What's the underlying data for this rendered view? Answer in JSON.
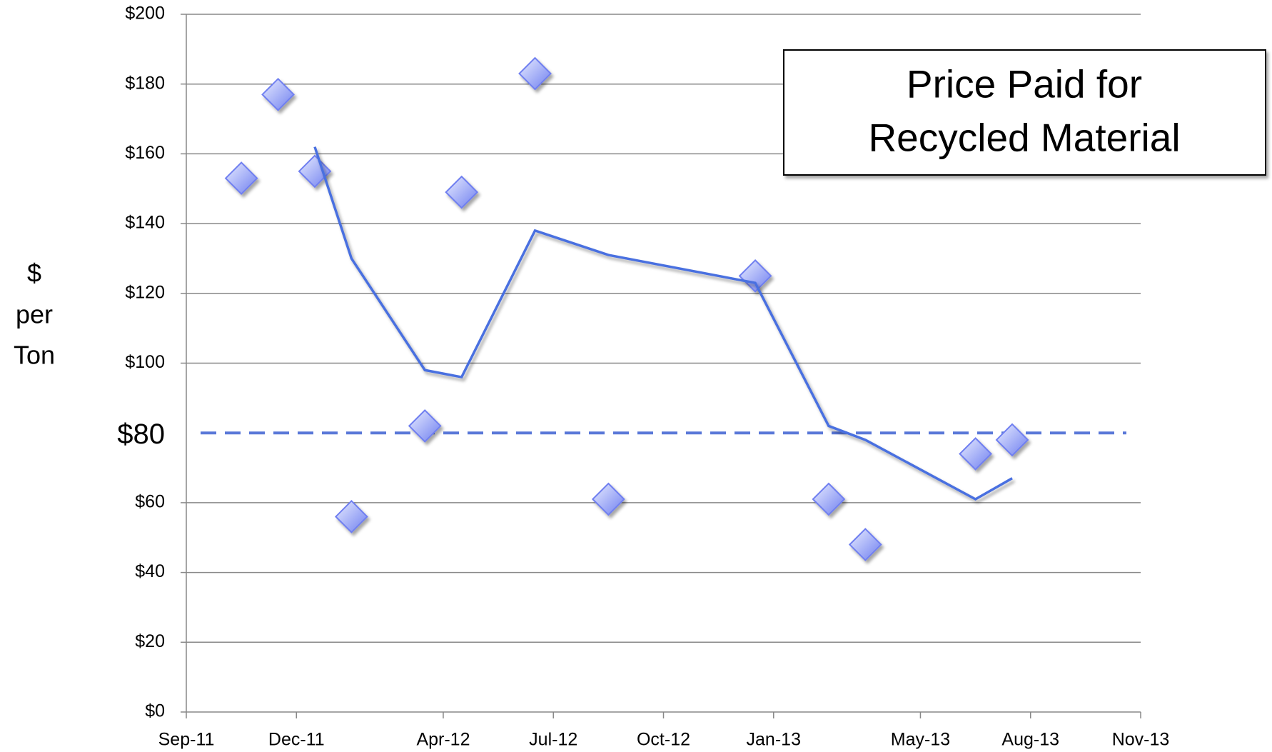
{
  "chart_data": {
    "type": "scatter",
    "title": [
      "Price Paid for",
      "Recycled Material"
    ],
    "y_label": [
      "$",
      "per",
      "Ton"
    ],
    "xlim": [
      "2011-09",
      "2013-11"
    ],
    "xticks": [
      {
        "value": "2011-09",
        "label": "Sep-11"
      },
      {
        "value": "2011-12",
        "label": "Dec-11"
      },
      {
        "value": "2012-04",
        "label": "Apr-12"
      },
      {
        "value": "2012-07",
        "label": "Jul-12"
      },
      {
        "value": "2012-10",
        "label": "Oct-12"
      },
      {
        "value": "2013-01",
        "label": "Jan-13"
      },
      {
        "value": "2013-05",
        "label": "May-13"
      },
      {
        "value": "2013-08",
        "label": "Aug-13"
      },
      {
        "value": "2013-11",
        "label": "Nov-13"
      }
    ],
    "ylim": [
      0,
      200
    ],
    "yticks": [
      {
        "value": 0,
        "label": "$0"
      },
      {
        "value": 20,
        "label": "$20"
      },
      {
        "value": 40,
        "label": "$40"
      },
      {
        "value": 60,
        "label": "$60"
      },
      {
        "value": 100,
        "label": "$100"
      },
      {
        "value": 120,
        "label": "$120"
      },
      {
        "value": 140,
        "label": "$140"
      },
      {
        "value": 160,
        "label": "$160"
      },
      {
        "value": 180,
        "label": "$180"
      },
      {
        "value": 200,
        "label": "$200"
      }
    ],
    "grid": true,
    "reference_line": {
      "value": 80,
      "label": "$80",
      "color": "#5a78d8"
    },
    "series": [
      {
        "kind": "scatter",
        "color": "#6f7ff0",
        "x": [
          "2011-10",
          "2011-11",
          "2011-12",
          "2012-01",
          "2012-03",
          "2012-04",
          "2012-06",
          "2012-08",
          "2012-12",
          "2013-02",
          "2013-03",
          "2013-06",
          "2013-07"
        ],
        "values": [
          153,
          177,
          155,
          56,
          82,
          149,
          183,
          61,
          125,
          61,
          48,
          74,
          78
        ]
      },
      {
        "kind": "line",
        "color": "#4a6fe0",
        "x": [
          "2011-12",
          "2012-01",
          "2012-03",
          "2012-04",
          "2012-06",
          "2012-08",
          "2012-12",
          "2013-02",
          "2013-03",
          "2013-06",
          "2013-07"
        ],
        "values": [
          162,
          130,
          98,
          96,
          138,
          131,
          123,
          82,
          78,
          61,
          67
        ]
      }
    ]
  }
}
